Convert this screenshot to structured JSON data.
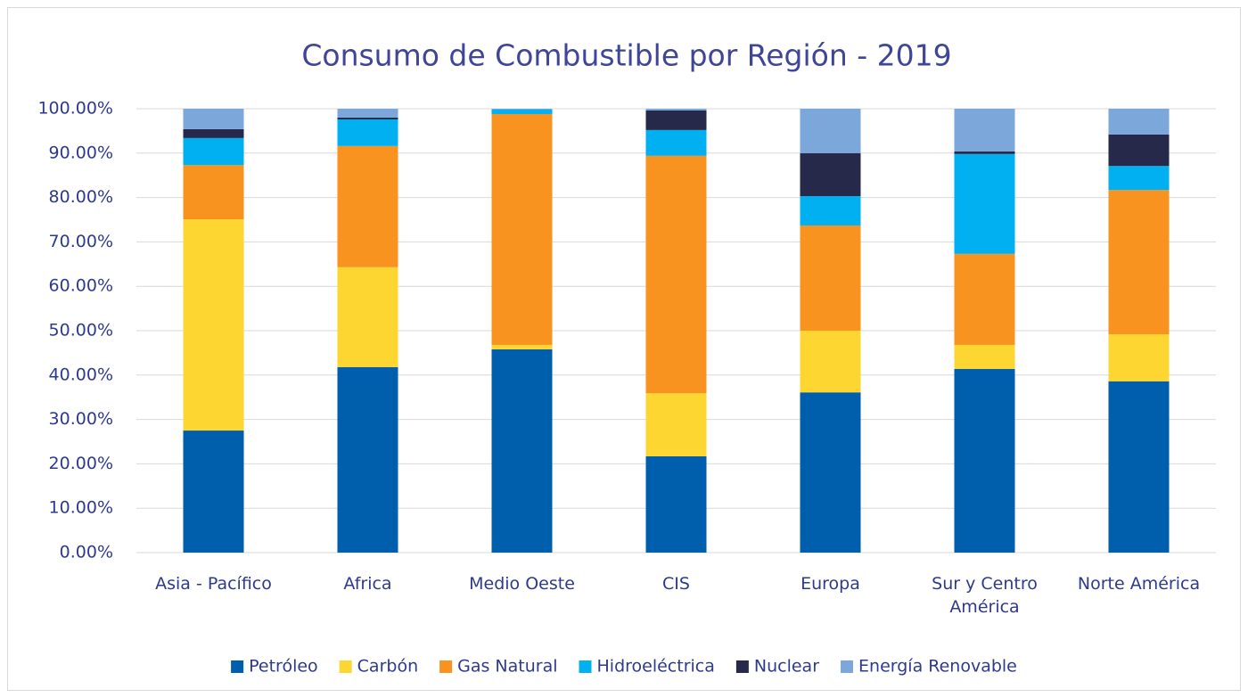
{
  "chart_data": {
    "type": "stacked_bar",
    "title": "Consumo de Combustible por Región - 2019",
    "categories": [
      "Asia - Pacífico",
      "Africa",
      "Medio Oeste",
      "CIS",
      "Europa",
      "Sur y Centro América",
      "Norte América"
    ],
    "series": [
      {
        "name": "Petróleo",
        "color": "#005fad",
        "values": [
          27.5,
          41.8,
          45.8,
          21.7,
          36.1,
          41.4,
          38.6
        ]
      },
      {
        "name": "Carbón",
        "color": "#fdd632",
        "values": [
          47.6,
          22.5,
          1.0,
          14.2,
          13.9,
          5.4,
          10.6
        ]
      },
      {
        "name": "Gas Natural",
        "color": "#f7931e",
        "values": [
          12.2,
          27.3,
          52.0,
          53.5,
          23.7,
          20.5,
          32.5
        ]
      },
      {
        "name": "Hidroeléctrica",
        "color": "#00b0f0",
        "values": [
          6.1,
          6.0,
          1.0,
          5.8,
          6.6,
          22.5,
          5.4
        ]
      },
      {
        "name": "Nuclear",
        "color": "#262949",
        "values": [
          2.0,
          0.4,
          0,
          4.4,
          9.7,
          0.6,
          7.1
        ]
      },
      {
        "name": "Energía Renovable",
        "color": "#7ba7db",
        "values": [
          4.6,
          2.0,
          0.2,
          0.4,
          10.0,
          9.6,
          5.8
        ]
      }
    ],
    "ylim": [
      0,
      100
    ],
    "yticks": [
      {
        "value": 0,
        "label": "0.00%"
      },
      {
        "value": 10,
        "label": "10.00%"
      },
      {
        "value": 20,
        "label": "20.00%"
      },
      {
        "value": 30,
        "label": "30.00%"
      },
      {
        "value": 40,
        "label": "40.00%"
      },
      {
        "value": 50,
        "label": "50.00%"
      },
      {
        "value": 60,
        "label": "60.00%"
      },
      {
        "value": 70,
        "label": "70.00%"
      },
      {
        "value": 80,
        "label": "80.00%"
      },
      {
        "value": 90,
        "label": "90.00%"
      },
      {
        "value": 100,
        "label": "100.00%"
      }
    ],
    "grid": true,
    "legend": "bottom"
  }
}
